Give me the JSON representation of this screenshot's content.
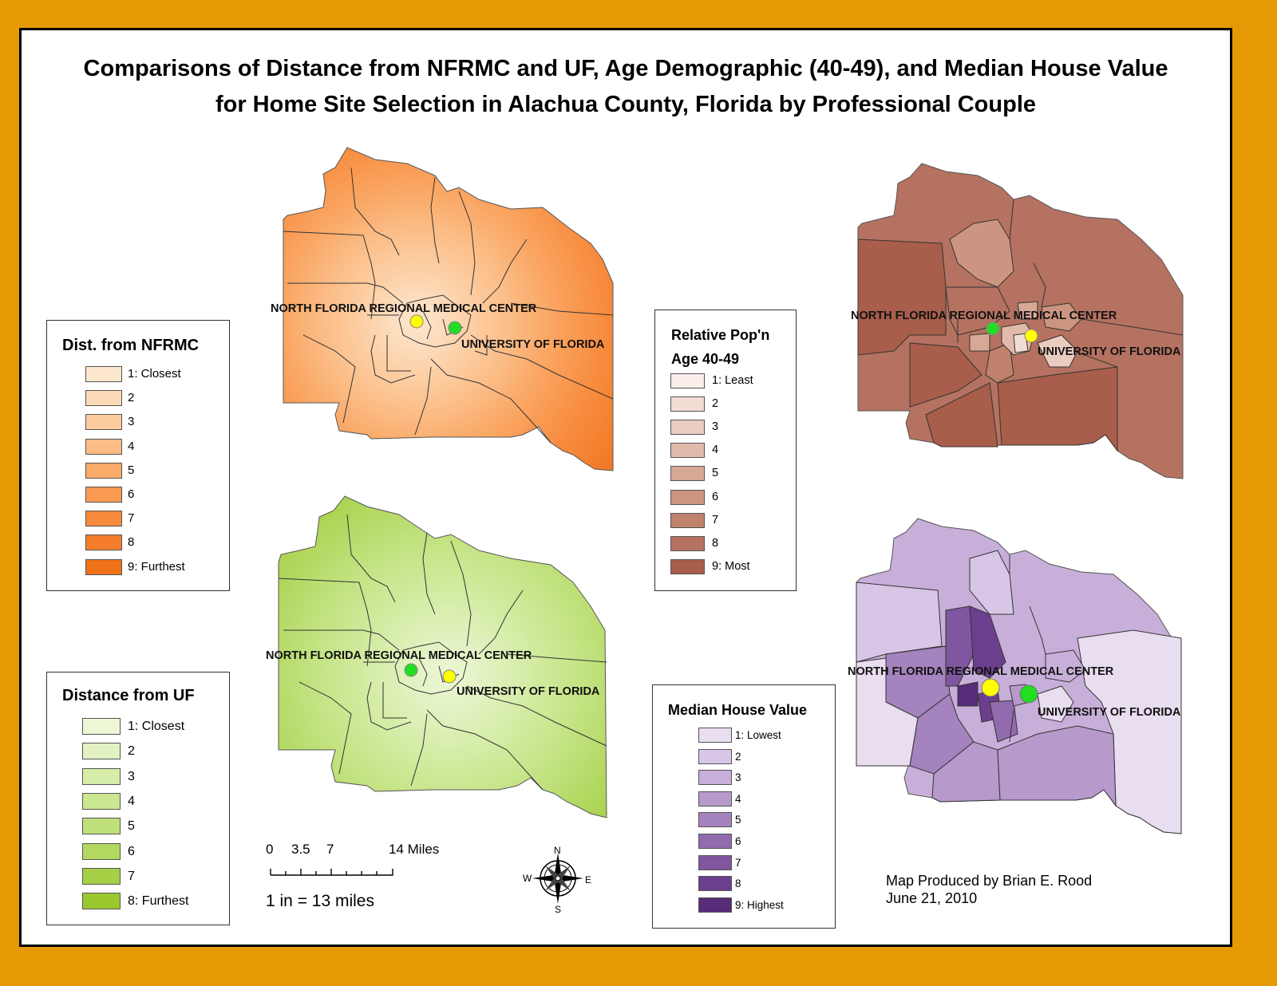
{
  "title_lines": [
    "Comparisons of Distance from NFRMC and UF, Age Demographic (40-49), and Median House Value",
    "for Home Site Selection in Alachua County, Florida by Professional Couple"
  ],
  "place_labels": {
    "nfrmc": "NORTH FLORIDA REGIONAL MEDICAL CENTER",
    "uf": "UNIVERSITY OF FLORIDA"
  },
  "legends": {
    "nfrmc": {
      "title": "Dist. from NFRMC",
      "items": [
        {
          "label": "1: Closest",
          "color": "#FDE7CF"
        },
        {
          "label": "2",
          "color": "#FCDAB8"
        },
        {
          "label": "3",
          "color": "#FCCB9E"
        },
        {
          "label": "4",
          "color": "#FBBC85"
        },
        {
          "label": "5",
          "color": "#FAAA69"
        },
        {
          "label": "6",
          "color": "#F99A52"
        },
        {
          "label": "7",
          "color": "#F78B3D"
        },
        {
          "label": "8",
          "color": "#F47E2C"
        },
        {
          "label": "9: Furthest",
          "color": "#EF7118"
        }
      ]
    },
    "uf": {
      "title": "Distance from UF",
      "items": [
        {
          "label": "1: Closest",
          "color": "#EDF7D6"
        },
        {
          "label": "2",
          "color": "#E2F2C2"
        },
        {
          "label": "3",
          "color": "#D6EDA9"
        },
        {
          "label": "4",
          "color": "#CBE791"
        },
        {
          "label": "5",
          "color": "#BFE07A"
        },
        {
          "label": "6",
          "color": "#B2D860"
        },
        {
          "label": "7",
          "color": "#A6D046"
        },
        {
          "label": "8: Furthest",
          "color": "#9AC82E"
        }
      ]
    },
    "age": {
      "title_line1": "Relative Pop'n",
      "title_line2": "Age 40-49",
      "items": [
        {
          "label": "1: Least",
          "color": "#F9EEEA"
        },
        {
          "label": "2",
          "color": "#F2DDD5"
        },
        {
          "label": "3",
          "color": "#EBCCC0"
        },
        {
          "label": "4",
          "color": "#E1BAAB"
        },
        {
          "label": "5",
          "color": "#D8A897"
        },
        {
          "label": "6",
          "color": "#CC9581"
        },
        {
          "label": "7",
          "color": "#C0826D"
        },
        {
          "label": "8",
          "color": "#B57260"
        },
        {
          "label": "9: Most",
          "color": "#A85E4B"
        }
      ]
    },
    "house": {
      "title": "Median House Value",
      "items": [
        {
          "label": "1: Lowest",
          "color": "#E9DDF0"
        },
        {
          "label": "2",
          "color": "#D8C6E6"
        },
        {
          "label": "3",
          "color": "#C8AFD9"
        },
        {
          "label": "4",
          "color": "#B799CC"
        },
        {
          "label": "5",
          "color": "#A583BE"
        },
        {
          "label": "6",
          "color": "#926BAE"
        },
        {
          "label": "7",
          "color": "#7F569F"
        },
        {
          "label": "8",
          "color": "#6B3F8D"
        },
        {
          "label": "9: Highest",
          "color": "#572C78"
        }
      ]
    }
  },
  "scale": {
    "ticks": [
      "0",
      "3.5",
      "7",
      "14 Miles"
    ],
    "ratio": "1 in = 13 miles"
  },
  "compass": {
    "n": "N",
    "s": "S",
    "e": "E",
    "w": "W"
  },
  "credit": {
    "line1": "Map Produced by Brian E. Rood",
    "line2": "June 21, 2010"
  },
  "colors": {
    "hospital_marker_orange_map": "#FFFF00",
    "uf_marker_orange_map": "#22DD22",
    "border": "#E59A05"
  }
}
